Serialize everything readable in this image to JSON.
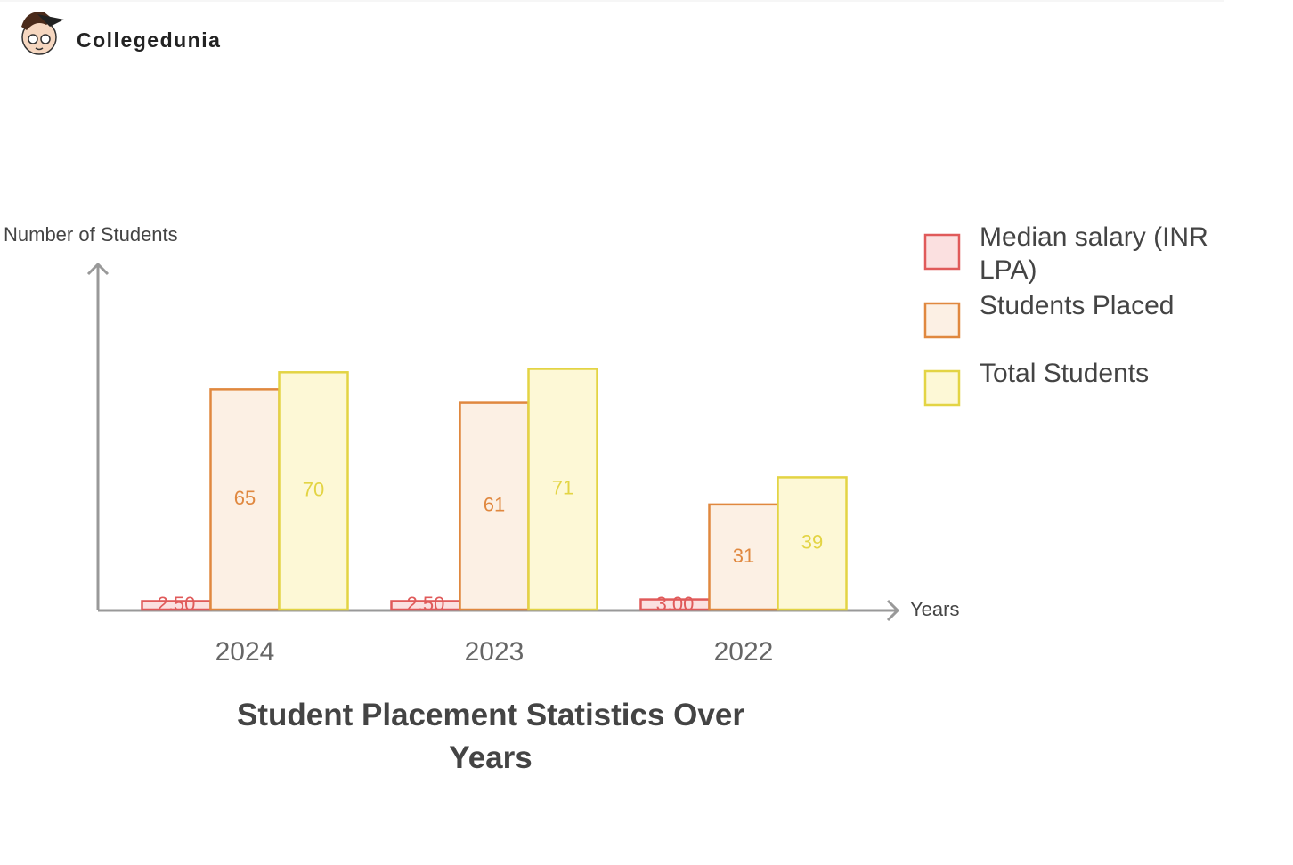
{
  "logo_text": "Collegedunia",
  "chart_data": {
    "type": "bar",
    "title": "Student Placement Statistics Over Years",
    "y_label": "Number of Students",
    "x_label": "Years",
    "categories": [
      "2024",
      "2023",
      "2022"
    ],
    "series": [
      {
        "name": "Median salary (INR LPA)",
        "color": "#e05a5a",
        "fill": "#fbe0e0",
        "values": [
          2.5,
          2.5,
          3.0
        ],
        "value_labels": [
          "2.50",
          "2.50",
          "3.00"
        ]
      },
      {
        "name": "Students Placed",
        "color": "#e0883f",
        "fill": "#fcf0e4",
        "values": [
          65,
          61,
          31
        ]
      },
      {
        "name": "Total Students",
        "color": "#e3d444",
        "fill": "#fdf8d6",
        "values": [
          70,
          71,
          39
        ]
      }
    ],
    "ylim": [
      0,
      100
    ],
    "legend": "right"
  }
}
